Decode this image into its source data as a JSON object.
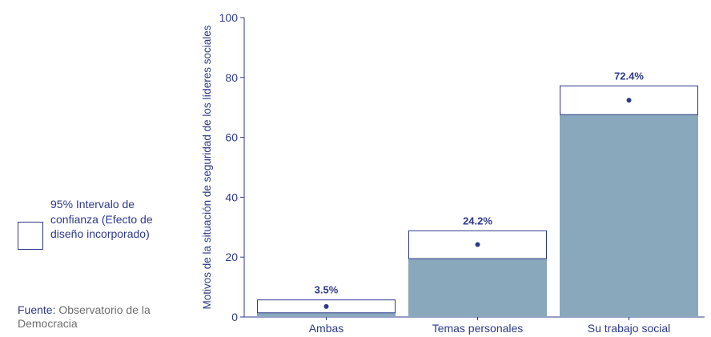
{
  "chart_data": {
    "type": "bar",
    "categories": [
      "Ambas",
      "Temas personales",
      "Su trabajo social"
    ],
    "values": [
      3.5,
      24.2,
      72.4
    ],
    "ci_low": [
      1.4,
      19.5,
      67.6
    ],
    "ci_high": [
      5.7,
      28.8,
      77.2
    ],
    "value_labels": [
      "3.5%",
      "24.2%",
      "72.4%"
    ],
    "ylabel": "Motivos de la situación de seguridad de los líderes sociales",
    "xlabel": "",
    "ylim": [
      0,
      100
    ],
    "yticks": [
      0,
      20,
      40,
      60,
      80,
      100
    ],
    "grid": false,
    "colors": {
      "bar": "#8aa8bc",
      "axis": "#2d3a8c",
      "point": "#2d3a8c"
    }
  },
  "legend": {
    "label": "95% Intervalo de confianza (Efecto de diseño incorporado)"
  },
  "source": {
    "label": "Fuente:",
    "text": "Observatorio de la Democracia"
  }
}
